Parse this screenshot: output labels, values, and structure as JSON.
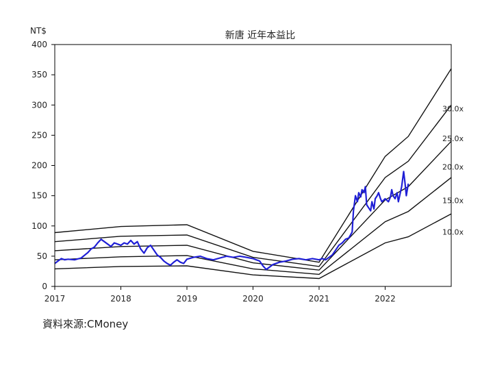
{
  "chart_data": {
    "type": "line",
    "title": "新唐 近年本益比",
    "ylabel": "NT$",
    "ylim": [
      0,
      400
    ],
    "yticks": [
      0,
      50,
      100,
      150,
      200,
      250,
      300,
      350,
      400
    ],
    "xlim": [
      2017.0,
      2023.0
    ],
    "xticks": [
      2017,
      2018,
      2019,
      2020,
      2021,
      2022
    ],
    "grid": false,
    "colors": {
      "price": "#1f1fd6",
      "bands": "#111111",
      "axis": "#000000"
    },
    "bands": [
      {
        "name": "10.0x",
        "points": [
          [
            2017.0,
            29
          ],
          [
            2018.0,
            33
          ],
          [
            2019.0,
            34
          ],
          [
            2020.0,
            19
          ],
          [
            2021.0,
            13
          ],
          [
            2022.0,
            72
          ],
          [
            2022.35,
            82
          ],
          [
            2023.0,
            120
          ]
        ]
      },
      {
        "name": "15.0x",
        "points": [
          [
            2017.0,
            44
          ],
          [
            2018.0,
            49
          ],
          [
            2019.0,
            51
          ],
          [
            2020.0,
            29
          ],
          [
            2021.0,
            20
          ],
          [
            2022.0,
            107
          ],
          [
            2022.35,
            124
          ],
          [
            2023.0,
            180
          ]
        ]
      },
      {
        "name": "20.0x",
        "points": [
          [
            2017.0,
            59
          ],
          [
            2018.0,
            66
          ],
          [
            2019.0,
            68
          ],
          [
            2020.0,
            39
          ],
          [
            2021.0,
            27
          ],
          [
            2022.0,
            143
          ],
          [
            2022.35,
            165
          ],
          [
            2023.0,
            240
          ]
        ]
      },
      {
        "name": "25.0x",
        "points": [
          [
            2017.0,
            74
          ],
          [
            2018.0,
            83
          ],
          [
            2019.0,
            85
          ],
          [
            2020.0,
            48
          ],
          [
            2021.0,
            33
          ],
          [
            2022.0,
            180
          ],
          [
            2022.35,
            207
          ],
          [
            2023.0,
            300
          ]
        ]
      },
      {
        "name": "30.0x",
        "points": [
          [
            2017.0,
            89
          ],
          [
            2018.0,
            99
          ],
          [
            2019.0,
            102
          ],
          [
            2020.0,
            58
          ],
          [
            2021.0,
            40
          ],
          [
            2022.0,
            215
          ],
          [
            2022.35,
            248
          ],
          [
            2023.0,
            360
          ]
        ]
      }
    ],
    "band_label_values": [
      90,
      142,
      198,
      245,
      294
    ],
    "series": [
      {
        "name": "price",
        "x": [
          2017.0,
          2017.05,
          2017.1,
          2017.15,
          2017.2,
          2017.3,
          2017.4,
          2017.5,
          2017.55,
          2017.6,
          2017.65,
          2017.7,
          2017.75,
          2017.8,
          2017.85,
          2017.9,
          2017.95,
          2018.0,
          2018.05,
          2018.1,
          2018.15,
          2018.2,
          2018.25,
          2018.3,
          2018.35,
          2018.4,
          2018.45,
          2018.5,
          2018.55,
          2018.6,
          2018.65,
          2018.7,
          2018.75,
          2018.8,
          2018.85,
          2018.9,
          2018.95,
          2019.0,
          2019.1,
          2019.2,
          2019.3,
          2019.4,
          2019.5,
          2019.6,
          2019.7,
          2019.8,
          2019.9,
          2020.0,
          2020.05,
          2020.1,
          2020.15,
          2020.2,
          2020.25,
          2020.3,
          2020.4,
          2020.5,
          2020.6,
          2020.7,
          2020.8,
          2020.9,
          2021.0,
          2021.05,
          2021.1,
          2021.15,
          2021.2,
          2021.25,
          2021.3,
          2021.35,
          2021.4,
          2021.45,
          2021.5,
          2021.52,
          2021.55,
          2021.58,
          2021.6,
          2021.63,
          2021.65,
          2021.68,
          2021.7,
          2021.72,
          2021.75,
          2021.78,
          2021.8,
          2021.83,
          2021.85,
          2021.88,
          2021.9,
          2021.93,
          2021.95,
          2022.0,
          2022.05,
          2022.08,
          2022.1,
          2022.12,
          2022.15,
          2022.18,
          2022.2,
          2022.22,
          2022.25,
          2022.28,
          2022.3,
          2022.32,
          2022.35
        ],
        "values": [
          38,
          42,
          46,
          44,
          45,
          44,
          47,
          56,
          62,
          65,
          72,
          78,
          74,
          70,
          66,
          72,
          70,
          68,
          72,
          70,
          76,
          70,
          74,
          62,
          55,
          64,
          68,
          60,
          52,
          48,
          42,
          38,
          35,
          40,
          44,
          40,
          38,
          45,
          48,
          50,
          46,
          44,
          47,
          50,
          48,
          50,
          48,
          46,
          44,
          42,
          34,
          28,
          32,
          36,
          40,
          42,
          45,
          46,
          44,
          46,
          44,
          46,
          44,
          48,
          52,
          60,
          68,
          72,
          78,
          80,
          90,
          125,
          150,
          140,
          155,
          148,
          160,
          155,
          165,
          135,
          130,
          125,
          140,
          128,
          145,
          150,
          155,
          145,
          140,
          145,
          140,
          148,
          160,
          150,
          145,
          155,
          140,
          150,
          165,
          190,
          172,
          150,
          170
        ]
      }
    ]
  },
  "source_text": "資料來源:CMoney"
}
